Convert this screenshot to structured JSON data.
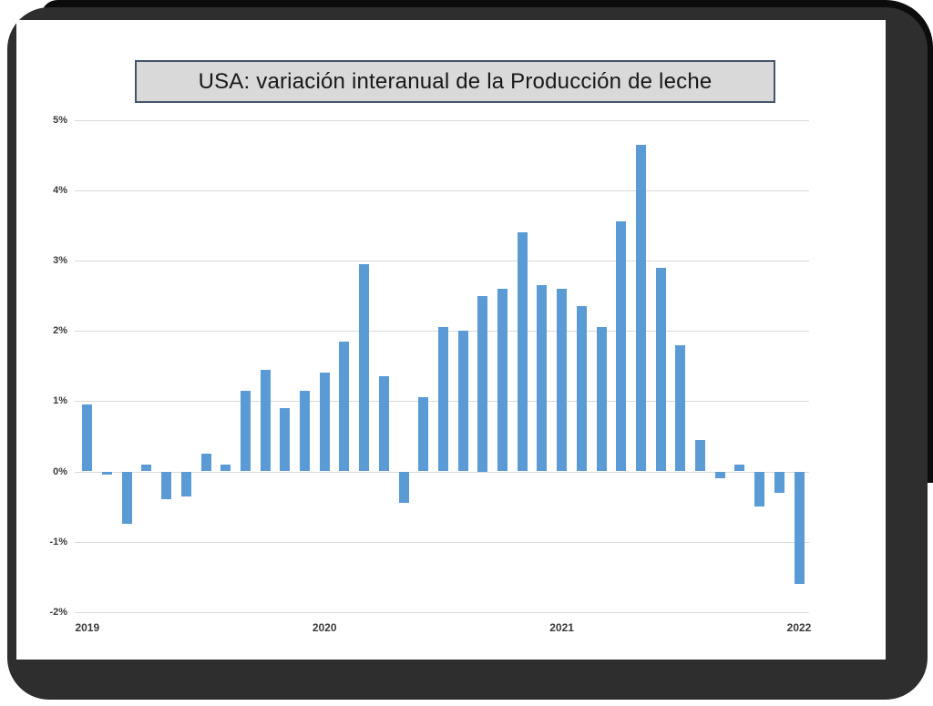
{
  "slide": {
    "title": "USA: variación interanual de la Producción de leche"
  },
  "chart_data": {
    "type": "bar",
    "title": "USA: variación interanual de la Producción de leche",
    "xlabel": "",
    "ylabel": "",
    "ylim": [
      -2,
      5
    ],
    "grid": true,
    "legend": "none",
    "bar_color": "#5b9bd5",
    "gridline_color": "#d9d9d9",
    "y_ticks": [
      "5%",
      "4%",
      "3%",
      "2%",
      "1%",
      "0%",
      "-1%",
      "-2%"
    ],
    "x_tick_labels": [
      "2019",
      "2020",
      "2021",
      "2022"
    ],
    "x": [
      "2019-01",
      "2019-02",
      "2019-03",
      "2019-04",
      "2019-05",
      "2019-06",
      "2019-07",
      "2019-08",
      "2019-09",
      "2019-10",
      "2019-11",
      "2019-12",
      "2020-01",
      "2020-02",
      "2020-03",
      "2020-04",
      "2020-05",
      "2020-06",
      "2020-07",
      "2020-08",
      "2020-09",
      "2020-10",
      "2020-11",
      "2020-12",
      "2021-01",
      "2021-02",
      "2021-03",
      "2021-04",
      "2021-05",
      "2021-06",
      "2021-07",
      "2021-08",
      "2021-09",
      "2021-10",
      "2021-11",
      "2021-12",
      "2022-01"
    ],
    "values": [
      0.95,
      -0.05,
      -0.75,
      0.1,
      -0.4,
      -0.35,
      0.25,
      0.1,
      1.15,
      1.45,
      0.9,
      1.15,
      1.4,
      1.85,
      2.95,
      1.35,
      -0.45,
      1.05,
      2.05,
      2.0,
      2.5,
      2.6,
      3.4,
      2.65,
      2.6,
      2.35,
      2.05,
      3.55,
      4.65,
      2.9,
      1.8,
      0.45,
      -0.1,
      0.1,
      -0.5,
      -0.3,
      -1.6
    ]
  }
}
